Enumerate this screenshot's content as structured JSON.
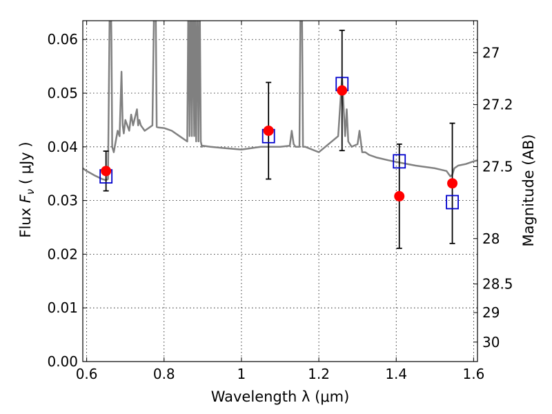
{
  "chart_data": {
    "type": "scatter",
    "xlabel": "Wavelength  λ (μm)",
    "ylabel": "Flux  Fν  ( μJy )",
    "ylabel_parts": {
      "prefix": "Flux  ",
      "symbol": "F",
      "subscript": "ν",
      "suffix": "  ( μJy )"
    },
    "y2label": "Magnitude (AB)",
    "xlim": [
      0.59,
      1.61
    ],
    "ylim": [
      0.0,
      0.0635
    ],
    "grid": true,
    "xticks": [
      0.6,
      0.8,
      1.0,
      1.2,
      1.4,
      1.6
    ],
    "xtick_labels": [
      "0.6",
      "0.8",
      "1",
      "1.2",
      "1.4",
      "1.6"
    ],
    "yticks": [
      0.0,
      0.01,
      0.02,
      0.03,
      0.04,
      0.05,
      0.06
    ],
    "ytick_labels": [
      "0.00",
      "0.01",
      "0.02",
      "0.03",
      "0.04",
      "0.05",
      "0.06"
    ],
    "y2ticks": [
      27.0,
      27.2,
      27.5,
      28.0,
      28.5,
      29.0,
      30.0
    ],
    "y2tick_labels": [
      "27",
      "27.2",
      "27.5",
      "28",
      "28.5",
      "29",
      "30"
    ],
    "colors": {
      "spectrum": "#808080",
      "model": "#0000cc",
      "observed": "#ff0000",
      "overlap": "#9900cc",
      "errorbar": "#000000"
    },
    "series": [
      {
        "kind": "line",
        "x": [
          0.59,
          0.6,
          0.62,
          0.64,
          0.65,
          0.655,
          0.66,
          0.662,
          0.664,
          0.666,
          0.67,
          0.675,
          0.68,
          0.685,
          0.69,
          0.693,
          0.696,
          0.7,
          0.71,
          0.715,
          0.72,
          0.73,
          0.733,
          0.736,
          0.74,
          0.75,
          0.76,
          0.77,
          0.775,
          0.778,
          0.781,
          0.785,
          0.8,
          0.82,
          0.84,
          0.86,
          0.863,
          0.866,
          0.869,
          0.872,
          0.875,
          0.878,
          0.88,
          0.883,
          0.886,
          0.889,
          0.892,
          0.895,
          0.898,
          0.9,
          0.92,
          0.95,
          1.0,
          1.05,
          1.1,
          1.125,
          1.13,
          1.135,
          1.14,
          1.145,
          1.15,
          1.153,
          1.156,
          1.159,
          1.162,
          1.165,
          1.2,
          1.25,
          1.26,
          1.268,
          1.272,
          1.276,
          1.285,
          1.3,
          1.305,
          1.312,
          1.32,
          1.33,
          1.35,
          1.38,
          1.4,
          1.45,
          1.5,
          1.53,
          1.54,
          1.545,
          1.55,
          1.56,
          1.58,
          1.6,
          1.61
        ],
        "y": [
          0.036,
          0.0355,
          0.0347,
          0.034,
          0.0338,
          0.034,
          0.07,
          0.07,
          0.06,
          0.04,
          0.039,
          0.041,
          0.043,
          0.042,
          0.054,
          0.044,
          0.0425,
          0.045,
          0.043,
          0.046,
          0.044,
          0.047,
          0.044,
          0.045,
          0.044,
          0.043,
          0.0435,
          0.044,
          0.07,
          0.07,
          0.0437,
          0.0436,
          0.0435,
          0.043,
          0.042,
          0.041,
          0.07,
          0.042,
          0.07,
          0.042,
          0.07,
          0.042,
          0.07,
          0.041,
          0.07,
          0.041,
          0.07,
          0.041,
          0.04,
          0.0402,
          0.04,
          0.0398,
          0.0395,
          0.04,
          0.04,
          0.0402,
          0.043,
          0.0405,
          0.04,
          0.04,
          0.04,
          0.07,
          0.07,
          0.04,
          0.04,
          0.04,
          0.039,
          0.042,
          0.053,
          0.042,
          0.047,
          0.041,
          0.04,
          0.0405,
          0.043,
          0.039,
          0.039,
          0.0385,
          0.038,
          0.0375,
          0.0372,
          0.0365,
          0.036,
          0.0355,
          0.0345,
          0.0348,
          0.036,
          0.0365,
          0.0368,
          0.0373,
          0.0375
        ]
      },
      {
        "kind": "model",
        "x": [
          0.65,
          1.07,
          1.26,
          1.408,
          1.545
        ],
        "y": [
          0.0345,
          0.042,
          0.0517,
          0.0373,
          0.0297
        ]
      },
      {
        "kind": "observed",
        "x": [
          0.65,
          1.07,
          1.26,
          1.408,
          1.545
        ],
        "y": [
          0.0355,
          0.043,
          0.0505,
          0.0308,
          0.0332
        ],
        "yerr": [
          0.0037,
          0.009,
          0.0112,
          0.0097,
          0.0112
        ]
      }
    ]
  }
}
